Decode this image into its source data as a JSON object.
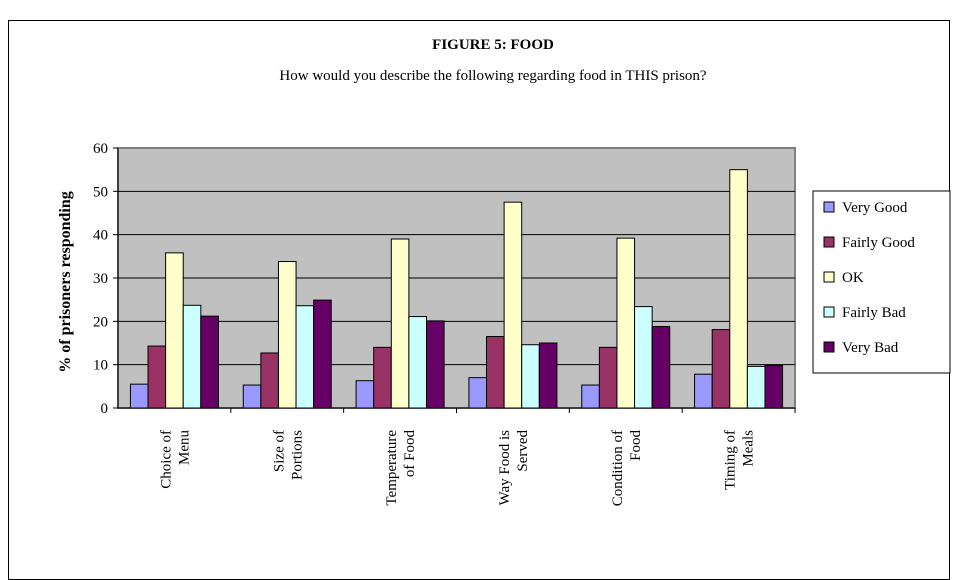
{
  "chart_data": {
    "type": "bar",
    "title": "FIGURE 5: FOOD",
    "subtitle": "How would you describe the following regarding food in THIS prison?",
    "xlabel": "",
    "ylabel": "% of prisoners responding",
    "ylim": [
      0,
      60
    ],
    "yticks": [
      0,
      10,
      20,
      30,
      40,
      50,
      60
    ],
    "grid": true,
    "legend_position": "right",
    "categories": [
      [
        "Choice of",
        "Menu"
      ],
      [
        "Size of",
        "Portions"
      ],
      [
        "Temperature",
        "of Food"
      ],
      [
        "Way Food is",
        "Served"
      ],
      [
        "Condition of",
        "Food"
      ],
      [
        "Timing of",
        "Meals"
      ]
    ],
    "series": [
      {
        "name": "Very Good",
        "color": "#9999ff",
        "values": [
          5.5,
          5.3,
          6.3,
          7.0,
          5.3,
          7.8
        ]
      },
      {
        "name": "Fairly Good",
        "color": "#993366",
        "values": [
          14.3,
          12.7,
          14.0,
          16.5,
          14.0,
          18.1
        ]
      },
      {
        "name": "OK",
        "color": "#ffffcc",
        "values": [
          35.8,
          33.8,
          39.0,
          47.5,
          39.2,
          55.0
        ]
      },
      {
        "name": "Fairly Bad",
        "color": "#ccffff",
        "values": [
          23.7,
          23.6,
          21.1,
          14.6,
          23.4,
          9.6
        ]
      },
      {
        "name": "Very Bad",
        "color": "#660066",
        "values": [
          21.2,
          24.9,
          20.1,
          15.0,
          18.8,
          9.8
        ]
      }
    ],
    "plot_background": "#c0c0c0"
  }
}
